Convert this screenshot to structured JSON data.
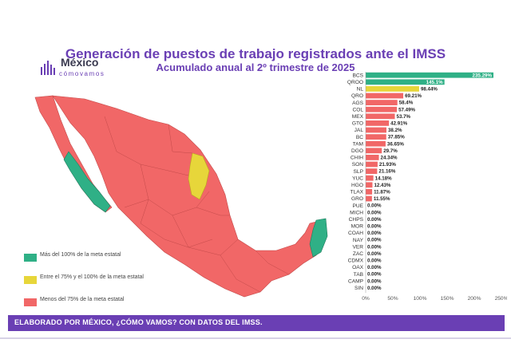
{
  "header": {
    "title": "Generación de puestos de trabajo registrados ante el IMSS",
    "subtitle": "Acumulado anual al 2º trimestre de 2025"
  },
  "logo": {
    "name": "México",
    "tagline": "cómovamos"
  },
  "legend": [
    {
      "label": "Más del 100% de la meta estatal",
      "color": "#2fb086"
    },
    {
      "label": "Entre el 75% y el 100% de la meta estatal",
      "color": "#e7d63a"
    },
    {
      "label": "Menos del 75% de la meta estatal",
      "color": "#f16767"
    }
  ],
  "footer": {
    "text": "ELABORADO POR MÉXICO, ¿CÓMO VAMOS? CON DATOS DEL IMSS."
  },
  "colors": {
    "accent": "#6a3fb4",
    "green": "#2fb086",
    "yellow": "#e7d63a",
    "red": "#f16767",
    "arrow": "#e12222"
  },
  "chart_data": {
    "type": "bar",
    "orientation": "horizontal",
    "title": "Generación de puestos de trabajo registrados ante el IMSS",
    "subtitle": "Acumulado anual al 2º trimestre de 2025",
    "categories": [
      "BCS",
      "QROO",
      "NL",
      "QRO",
      "AGS",
      "COL",
      "MEX",
      "GTO",
      "JAL",
      "BC",
      "TAM",
      "DGO",
      "CHIH",
      "SON",
      "SLP",
      "YUC",
      "HGO",
      "TLAX",
      "GRO",
      "PUE",
      "MICH",
      "CHPS",
      "MOR",
      "COAH",
      "NAY",
      "VER",
      "ZAC",
      "CDMX",
      "OAX",
      "TAB",
      "CAMP",
      "SIN"
    ],
    "values": [
      235.29,
      145.1,
      98.44,
      69.21,
      58.4,
      57.49,
      53.7,
      42.91,
      38.2,
      37.85,
      36.65,
      29.7,
      24.34,
      21.93,
      21.16,
      14.18,
      12.43,
      11.87,
      11.55,
      0,
      0,
      0,
      0,
      0,
      0,
      0,
      0,
      0,
      0,
      0,
      0,
      0
    ],
    "value_labels": [
      "235.29%",
      "145.1%",
      "98.44%",
      "69.21%",
      "58.4%",
      "57.49%",
      "53.7%",
      "42.91%",
      "38.2%",
      "37.85%",
      "36.65%",
      "29.7%",
      "24.34%",
      "21.93%",
      "21.16%",
      "14.18%",
      "12.43%",
      "11.87%",
      "11.55%",
      "0.00%",
      "0.00%",
      "0.00%",
      "0.00%",
      "0.00%",
      "0.00%",
      "0.00%",
      "0.00%",
      "0.00%",
      "0.00%",
      "0.00%",
      "0.00%",
      "0.00%"
    ],
    "colors": [
      "#2fb086",
      "#2fb086",
      "#e7d63a",
      "#f16767",
      "#f16767",
      "#f16767",
      "#f16767",
      "#f16767",
      "#f16767",
      "#f16767",
      "#f16767",
      "#f16767",
      "#f16767",
      "#f16767",
      "#f16767",
      "#f16767",
      "#f16767",
      "#f16767",
      "#f16767",
      "#f16767",
      "#f16767",
      "#f16767",
      "#f16767",
      "#f16767",
      "#f16767",
      "#f16767",
      "#f16767",
      "#f16767",
      "#f16767",
      "#f16767",
      "#f16767",
      "#f16767"
    ],
    "xlim": [
      0,
      250
    ],
    "xticks": [
      "0%",
      "50%",
      "100%",
      "150%",
      "200%",
      "250%"
    ],
    "highlight": "QRO",
    "grid": false
  }
}
